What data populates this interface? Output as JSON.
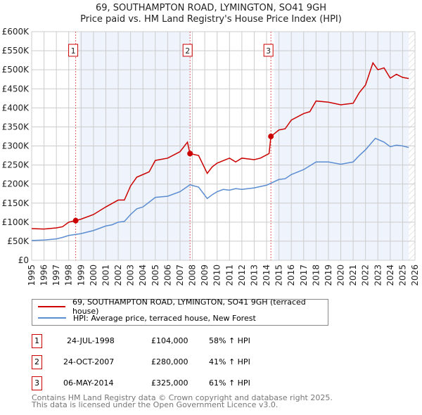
{
  "title": "69, SOUTHAMPTON ROAD, LYMINGTON, SO41 9GH",
  "subtitle": "Price paid vs. HM Land Registry's House Price Index (HPI)",
  "chart_data": {
    "type": "line",
    "ylim": [
      0,
      600000
    ],
    "xlim": [
      1995,
      2026
    ],
    "yticks": [
      0,
      50000,
      100000,
      150000,
      200000,
      250000,
      300000,
      350000,
      400000,
      450000,
      500000,
      550000,
      600000
    ],
    "ytick_labels": [
      "£0",
      "£50K",
      "£100K",
      "£150K",
      "£200K",
      "£250K",
      "£300K",
      "£350K",
      "£400K",
      "£450K",
      "£500K",
      "£550K",
      "£600K"
    ],
    "xtick_labels": [
      "1995",
      "1996",
      "1997",
      "1998",
      "1999",
      "2000",
      "2001",
      "2002",
      "2003",
      "2004",
      "2005",
      "2006",
      "2007",
      "2008",
      "2009",
      "2010",
      "2011",
      "2012",
      "2013",
      "2014",
      "2015",
      "2016",
      "2017",
      "2018",
      "2019",
      "2020",
      "2021",
      "2022",
      "2023",
      "2024",
      "2025",
      "2026"
    ],
    "grid": true,
    "series": [
      {
        "name": "69, SOUTHAMPTON ROAD, LYMINGTON, SO41 9GH (terraced house)",
        "color": "#cc0000",
        "x": [
          1995,
          1996,
          1997,
          1997.5,
          1998,
          1998.56,
          1999,
          2000,
          2001,
          2002,
          2002.5,
          2003,
          2003.5,
          2004,
          2004.5,
          2005,
          2006,
          2007,
          2007.6,
          2007.8,
          2008.5,
          2009.2,
          2009.6,
          2010,
          2011,
          2011.5,
          2012,
          2013,
          2013.5,
          2014.2,
          2014.35,
          2015,
          2015.5,
          2016,
          2017,
          2017.5,
          2018,
          2019,
          2020,
          2020.5,
          2021,
          2021.5,
          2022,
          2022.6,
          2023,
          2023.5,
          2024,
          2024.5,
          2025,
          2025.5
        ],
        "y": [
          83000,
          82000,
          85000,
          88000,
          100000,
          104000,
          108000,
          120000,
          140000,
          158000,
          158000,
          195000,
          218000,
          225000,
          232000,
          262000,
          268000,
          285000,
          310000,
          280000,
          275000,
          228000,
          245000,
          255000,
          268000,
          258000,
          268000,
          264000,
          268000,
          280000,
          325000,
          342000,
          345000,
          368000,
          385000,
          390000,
          418000,
          415000,
          408000,
          410000,
          412000,
          440000,
          460000,
          518000,
          500000,
          505000,
          478000,
          488000,
          480000,
          477000
        ]
      },
      {
        "name": "HPI: Average price, terraced house, New Forest",
        "color": "#5b8dd0",
        "x": [
          1995,
          1996,
          1997,
          1997.5,
          1998,
          1999,
          2000,
          2001,
          2001.5,
          2002,
          2002.5,
          2003,
          2003.5,
          2004,
          2005,
          2006,
          2007,
          2007.8,
          2008.5,
          2009.2,
          2009.6,
          2010,
          2010.5,
          2011,
          2011.5,
          2012,
          2013,
          2014,
          2015,
          2015.5,
          2016,
          2017,
          2018,
          2019,
          2020,
          2020.5,
          2021,
          2021.5,
          2022,
          2022.8,
          2023.5,
          2024,
          2024.5,
          2025,
          2025.5
        ],
        "y": [
          52000,
          53000,
          56000,
          60000,
          65000,
          70000,
          78000,
          90000,
          93000,
          100000,
          102000,
          120000,
          135000,
          140000,
          165000,
          168000,
          180000,
          198000,
          192000,
          162000,
          172000,
          180000,
          186000,
          184000,
          188000,
          186000,
          190000,
          197000,
          212000,
          214000,
          225000,
          238000,
          258000,
          258000,
          252000,
          255000,
          258000,
          275000,
          290000,
          320000,
          310000,
          298000,
          302000,
          300000,
          296000
        ]
      }
    ],
    "sales": [
      {
        "label": "1",
        "x": 1998.56,
        "y": 104000
      },
      {
        "label": "2",
        "x": 2007.81,
        "y": 280000
      },
      {
        "label": "3",
        "x": 2014.35,
        "y": 325000
      }
    ]
  },
  "legend": {
    "items": [
      "69, SOUTHAMPTON ROAD, LYMINGTON, SO41 9GH (terraced house)",
      "HPI: Average price, terraced house, New Forest"
    ]
  },
  "transactions": [
    {
      "num": "1",
      "date": "24-JUL-1998",
      "price": "£104,000",
      "hpi": "58% ↑ HPI"
    },
    {
      "num": "2",
      "date": "24-OCT-2007",
      "price": "£280,000",
      "hpi": "41% ↑ HPI"
    },
    {
      "num": "3",
      "date": "06-MAY-2014",
      "price": "£325,000",
      "hpi": "61% ↑ HPI"
    }
  ],
  "footer": [
    "Contains HM Land Registry data © Crown copyright and database right 2025.",
    "This data is licensed under the Open Government Licence v3.0."
  ]
}
